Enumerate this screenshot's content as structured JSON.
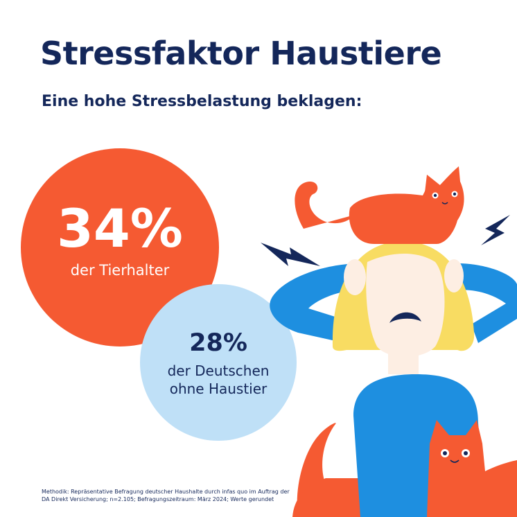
{
  "header": {
    "title": "Stressfaktor Haustiere",
    "subtitle": "Eine hohe Stressbelastung beklagen:"
  },
  "stats": {
    "pet_owners": {
      "value": "34%",
      "label": "der Tierhalter",
      "percent": 34
    },
    "non_owners": {
      "value": "28%",
      "label_line1": "der Deutschen",
      "label_line2": "ohne Haustier",
      "percent": 28
    }
  },
  "footer": {
    "methodology_line1": "Methodik: Repräsentative Befragung deutscher Haushalte durch infas quo im Auftrag der",
    "methodology_line2": "DA Direkt Versicherung; n=2.105; Befragungszeitraum: März 2024; Werte gerundet"
  },
  "colors": {
    "navy": "#14275a",
    "orange": "#f55a32",
    "light_blue": "#bfe0f7",
    "blue": "#1e8fe0",
    "blonde": "#f8dc62",
    "skin": "#fdeee3"
  },
  "icons": [
    "lightning-bolt-icon",
    "cat-icon",
    "stressed-woman-icon"
  ]
}
